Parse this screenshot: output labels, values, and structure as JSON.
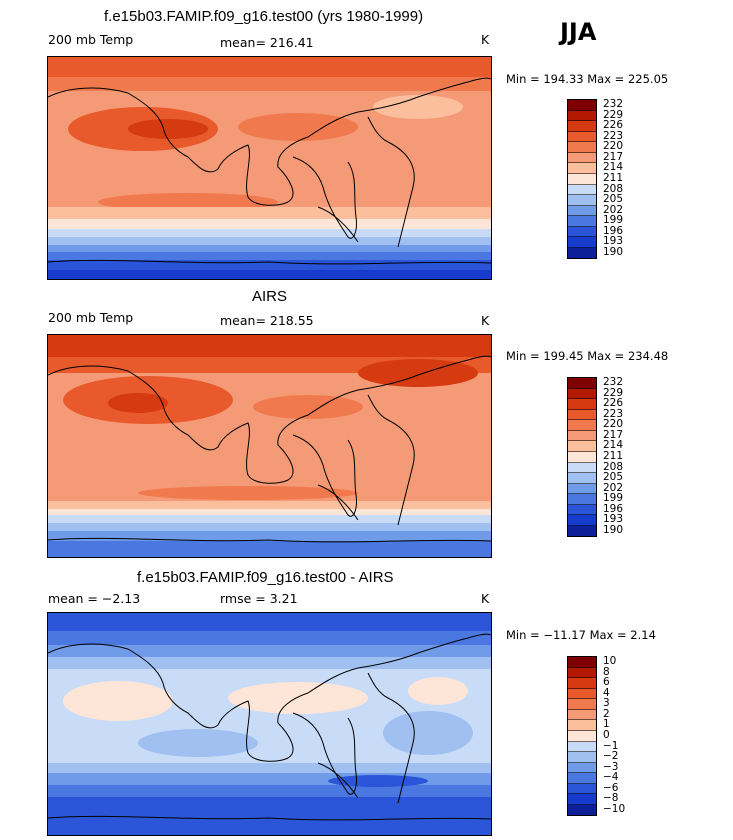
{
  "season": "JJA",
  "panels": [
    {
      "title": "f.e15b03.FAMIP.f09_g16.test00 (yrs 1980-1999)",
      "left_label": "200 mb Temp",
      "mid_label": "mean= 216.41",
      "unit": "K",
      "minmax": "Min = 194.33 Max = 225.05",
      "colorbar_labels": [
        "232",
        "229",
        "226",
        "223",
        "220",
        "217",
        "214",
        "211",
        "208",
        "205",
        "202",
        "199",
        "196",
        "193",
        "190"
      ]
    },
    {
      "title": "AIRS",
      "left_label": "200 mb Temp",
      "mid_label": "mean= 218.55",
      "unit": "K",
      "minmax": "Min = 199.45 Max = 234.48",
      "colorbar_labels": [
        "232",
        "229",
        "226",
        "223",
        "220",
        "217",
        "214",
        "211",
        "208",
        "205",
        "202",
        "199",
        "196",
        "193",
        "190"
      ]
    },
    {
      "title": "f.e15b03.FAMIP.f09_g16.test00 - AIRS",
      "left_label": "mean =   −2.13",
      "mid_label": "rmse =    3.21",
      "unit": "K",
      "minmax": "Min = −11.17 Max =    2.14",
      "colorbar_labels": [
        "10",
        "8",
        "6",
        "4",
        "3",
        "2",
        "1",
        "0",
        "−1",
        "−2",
        "−3",
        "−4",
        "−6",
        "−8",
        "−10"
      ]
    }
  ],
  "colors": {
    "temp_scale": [
      "#7f0000",
      "#b31800",
      "#d63a10",
      "#e85a2b",
      "#f07a4e",
      "#f59a76",
      "#fbbf9e",
      "#fde6d8",
      "#c9dcf7",
      "#9fc0f0",
      "#6f9be8",
      "#4a78e0",
      "#2a55d8",
      "#173bcc",
      "#0d1f99"
    ],
    "diff_scale": [
      "#7f0000",
      "#b31800",
      "#d63a10",
      "#e85a2b",
      "#f07a4e",
      "#f59a76",
      "#fbbf9e",
      "#fde6d8",
      "#c9dcf7",
      "#9fc0f0",
      "#6f9be8",
      "#4a78e0",
      "#2a55d8",
      "#173bcc",
      "#0d1f99"
    ]
  }
}
